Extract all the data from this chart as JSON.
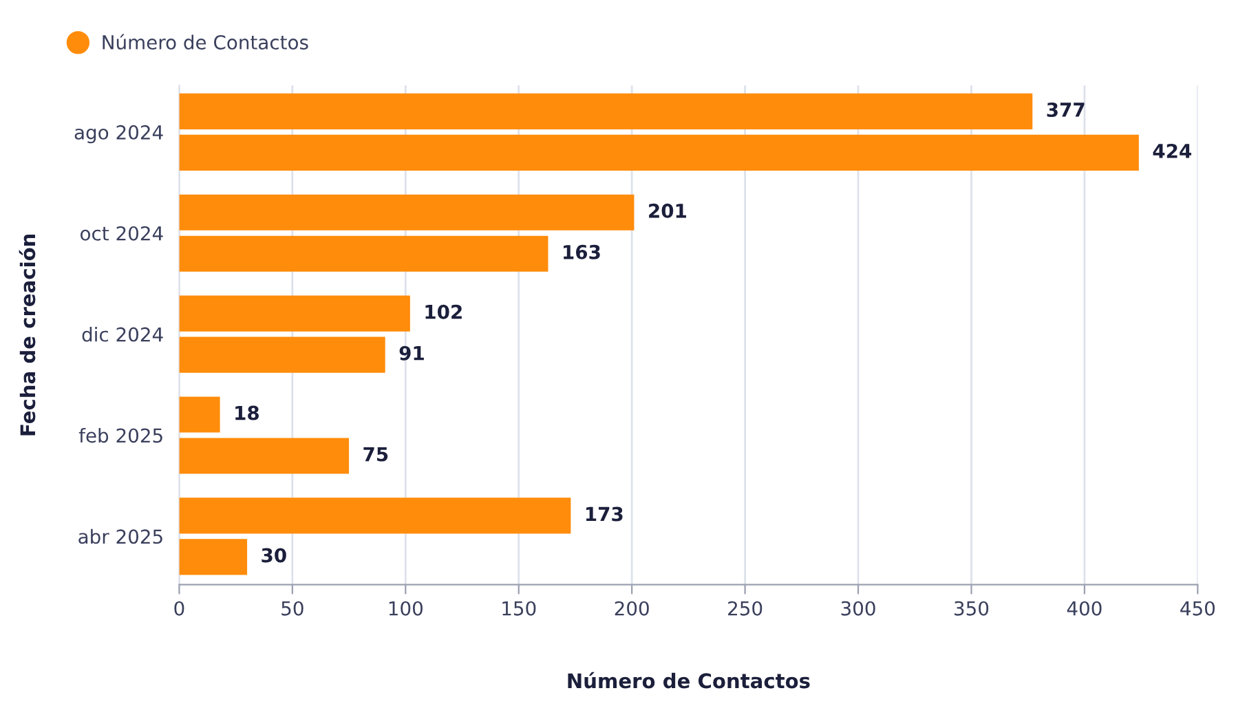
{
  "chart_data": {
    "type": "bar",
    "orientation": "horizontal",
    "categories": [
      "ago 2024",
      "oct 2024",
      "dic 2024",
      "feb 2025",
      "abr 2025"
    ],
    "series": [
      {
        "name": "Número de Contactos",
        "color": "#ff8c0a",
        "values": [
          377,
          201,
          102,
          18,
          173
        ]
      },
      {
        "color": "#ff8c0a",
        "values": [
          424,
          163,
          91,
          75,
          30
        ]
      }
    ],
    "xlabel": "Número de Contactos",
    "ylabel": "Fecha de creación",
    "xlim": [
      0,
      450
    ],
    "xticks": [
      0,
      50,
      100,
      150,
      200,
      250,
      300,
      350,
      400,
      450
    ],
    "grid": "x",
    "legend": "top left",
    "data_labels": true
  }
}
